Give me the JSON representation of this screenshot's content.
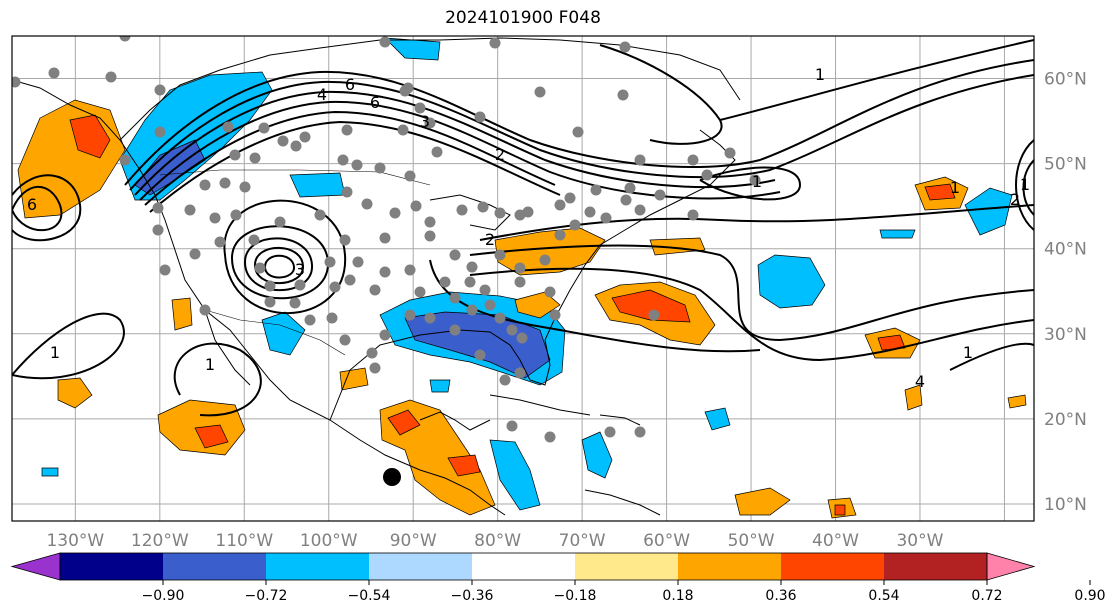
{
  "title": "2024101900 F048",
  "map": {
    "lon_range": [
      -137.5,
      -16.5
    ],
    "lat_range": [
      8,
      65
    ],
    "grid_lons": [
      -130,
      -120,
      -110,
      -100,
      -90,
      -80,
      -70,
      -60,
      -50,
      -40,
      -30,
      -20
    ],
    "grid_lats": [
      10,
      20,
      30,
      40,
      50,
      60
    ],
    "lon_labels": [
      "130°W",
      "120°W",
      "110°W",
      "100°W",
      "90°W",
      "80°W",
      "70°W",
      "60°W",
      "50°W",
      "40°W",
      "30°W"
    ],
    "lat_labels": [
      "10°N",
      "20°N",
      "30°N",
      "40°N",
      "50°N",
      "60°N"
    ],
    "contour_labels": [
      "6",
      "6",
      "4",
      "3",
      "2",
      "1",
      "1",
      "2",
      "1",
      "1",
      "1",
      "4",
      "2",
      "1",
      "1",
      "6",
      "3"
    ]
  },
  "colorbar": {
    "ticks": [
      "−0.90",
      "−0.72",
      "−0.54",
      "−0.36",
      "−0.18",
      "0.18",
      "0.36",
      "0.54",
      "0.72",
      "0.90"
    ],
    "colors": [
      "#9a32cd",
      "#00008b",
      "#3a5fcd",
      "#00bfff",
      "#add8ff",
      "#ffffff",
      "#ffe98a",
      "#ffa500",
      "#ff4500",
      "#b22222",
      "#ff82ab"
    ]
  },
  "colors": {
    "grid": "#a9a9a9",
    "station": "#808080",
    "contour": "#000000",
    "land": "#000000"
  }
}
